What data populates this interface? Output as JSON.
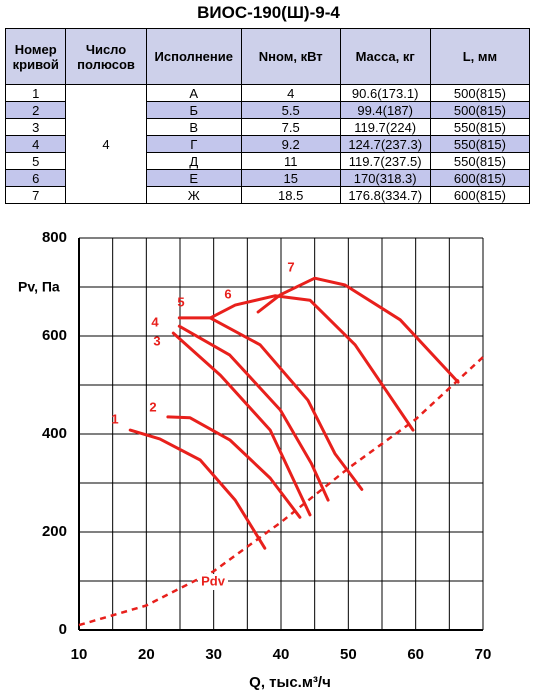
{
  "title": "ВИОС-190(Ш)-9-4",
  "table": {
    "headers": [
      "Номер кривой",
      "Число полюсов",
      "Исполнение",
      "Nном, кВт",
      "Масса, кг",
      "L, мм"
    ],
    "poles": "4",
    "rows": [
      [
        "1",
        "А",
        "4",
        "90.6(173.1)",
        "500(815)"
      ],
      [
        "2",
        "Б",
        "5.5",
        "99.4(187)",
        "500(815)"
      ],
      [
        "3",
        "В",
        "7.5",
        "119.7(224)",
        "550(815)"
      ],
      [
        "4",
        "Г",
        "9.2",
        "124.7(237.3)",
        "550(815)"
      ],
      [
        "5",
        "Д",
        "11",
        "119.7(237.5)",
        "550(815)"
      ],
      [
        "6",
        "Е",
        "15",
        "170(318.3)",
        "600(815)"
      ],
      [
        "7",
        "Ж",
        "18.5",
        "176.8(334.7)",
        "600(815)"
      ]
    ]
  },
  "chart_data": {
    "type": "line",
    "x_label": "Q, тыс.м³/ч",
    "y_label": "Pv, Па",
    "xlim": [
      10,
      70
    ],
    "ylim": [
      0,
      800
    ],
    "xticks": [
      10,
      20,
      30,
      40,
      50,
      60,
      70
    ],
    "yticks": [
      0,
      200,
      400,
      600,
      800
    ],
    "x_minor_grid": [
      15,
      25,
      35,
      45,
      55,
      65
    ],
    "y_minor_grid": [
      100,
      300,
      500,
      700
    ],
    "grid": true,
    "series": [
      {
        "name": "1",
        "color": "#e8201c",
        "x": [
          17.6,
          22,
          28,
          33.2,
          37.6
        ],
        "values": [
          408,
          390,
          347,
          265,
          167
        ]
      },
      {
        "name": "2",
        "color": "#e8201c",
        "x": [
          23.2,
          26.5,
          32.4,
          38.4,
          42.8
        ],
        "values": [
          435,
          433,
          388,
          310,
          230
        ]
      },
      {
        "name": "3",
        "color": "#e8201c",
        "x": [
          24,
          31,
          38.4,
          44.3
        ],
        "values": [
          606,
          520,
          408,
          235
        ]
      },
      {
        "name": "4",
        "color": "#e8201c",
        "x": [
          24.9,
          32.4,
          39.9,
          44.5,
          47
        ],
        "values": [
          620,
          561,
          449,
          340,
          265
        ]
      },
      {
        "name": "5",
        "color": "#e8201c",
        "x": [
          24.9,
          29.5,
          36.9,
          44,
          48,
          52
        ],
        "values": [
          637,
          637,
          582,
          469,
          360,
          287
        ]
      },
      {
        "name": "6",
        "color": "#e8201c",
        "x": [
          29.5,
          33.2,
          39.1,
          44.3,
          51,
          59.6
        ],
        "values": [
          637,
          663,
          682,
          673,
          582,
          408
        ]
      },
      {
        "name": "7",
        "color": "#e8201c",
        "x": [
          36.6,
          39.9,
          45,
          49.5,
          57.7,
          66.3
        ],
        "values": [
          649,
          684,
          718,
          704,
          633,
          506
        ]
      },
      {
        "name": "Pdv",
        "color": "#e8201c",
        "dashed": true,
        "x": [
          10,
          20,
          30,
          40,
          50,
          60,
          70
        ],
        "values": [
          10,
          50,
          120,
          220,
          330,
          430,
          557
        ]
      }
    ]
  }
}
